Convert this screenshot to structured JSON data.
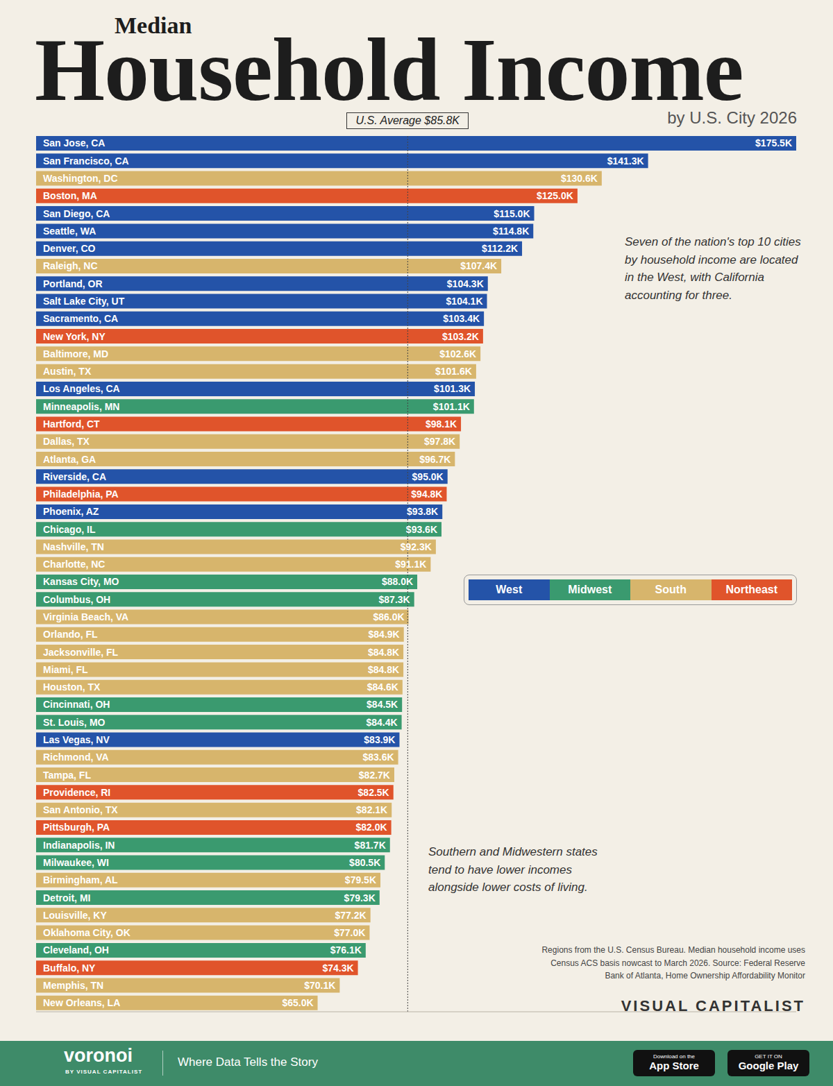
{
  "chart_data": {
    "type": "bar",
    "orientation": "horizontal",
    "supertitle": "Median",
    "title": "Household Income",
    "subtitle": "by U.S. City 2026",
    "categories": [
      "San Jose, CA",
      "San Francisco, CA",
      "Washington, DC",
      "Boston, MA",
      "San Diego, CA",
      "Seattle, WA",
      "Denver, CO",
      "Raleigh, NC",
      "Portland, OR",
      "Salt Lake City, UT",
      "Sacramento, CA",
      "New York, NY",
      "Baltimore, MD",
      "Austin, TX",
      "Los Angeles, CA",
      "Minneapolis, MN",
      "Hartford, CT",
      "Dallas, TX",
      "Atlanta, GA",
      "Riverside, CA",
      "Philadelphia, PA",
      "Phoenix, AZ",
      "Chicago, IL",
      "Nashville, TN",
      "Charlotte, NC",
      "Kansas City, MO",
      "Columbus, OH",
      "Virginia Beach, VA",
      "Orlando, FL",
      "Jacksonville, FL",
      "Miami, FL",
      "Houston, TX",
      "Cincinnati, OH",
      "St. Louis, MO",
      "Las Vegas, NV",
      "Richmond, VA",
      "Tampa, FL",
      "Providence, RI",
      "San Antonio, TX",
      "Pittsburgh, PA",
      "Indianapolis, IN",
      "Milwaukee, WI",
      "Birmingham, AL",
      "Detroit, MI",
      "Louisville, KY",
      "Oklahoma City, OK",
      "Cleveland, OH",
      "Buffalo, NY",
      "Memphis, TN",
      "New Orleans, LA"
    ],
    "values": [
      175.5,
      141.3,
      130.6,
      125.0,
      115.0,
      114.8,
      112.2,
      107.4,
      104.3,
      104.1,
      103.4,
      103.2,
      102.6,
      101.6,
      101.3,
      101.1,
      98.1,
      97.8,
      96.7,
      95.0,
      94.8,
      93.8,
      93.6,
      92.3,
      91.1,
      88.0,
      87.3,
      86.0,
      84.9,
      84.8,
      84.8,
      84.6,
      84.5,
      84.4,
      83.9,
      83.6,
      82.7,
      82.5,
      82.1,
      82.0,
      81.7,
      80.5,
      79.5,
      79.3,
      77.2,
      77.0,
      76.1,
      74.3,
      70.1,
      65.0
    ],
    "value_labels": [
      "$175.5K",
      "$141.3K",
      "$130.6K",
      "$125.0K",
      "$115.0K",
      "$114.8K",
      "$112.2K",
      "$107.4K",
      "$104.3K",
      "$104.1K",
      "$103.4K",
      "$103.2K",
      "$102.6K",
      "$101.6K",
      "$101.3K",
      "$101.1K",
      "$98.1K",
      "$97.8K",
      "$96.7K",
      "$95.0K",
      "$94.8K",
      "$93.8K",
      "$93.6K",
      "$92.3K",
      "$91.1K",
      "$88.0K",
      "$87.3K",
      "$86.0K",
      "$84.9K",
      "$84.8K",
      "$84.8K",
      "$84.6K",
      "$84.5K",
      "$84.4K",
      "$83.9K",
      "$83.6K",
      "$82.7K",
      "$82.5K",
      "$82.1K",
      "$82.0K",
      "$81.7K",
      "$80.5K",
      "$79.5K",
      "$79.3K",
      "$77.2K",
      "$77.0K",
      "$76.1K",
      "$74.3K",
      "$70.1K",
      "$65.0K"
    ],
    "colors": [
      "#2453a8",
      "#2453a8",
      "#d7b56c",
      "#e0542b",
      "#2453a8",
      "#2453a8",
      "#2453a8",
      "#d7b56c",
      "#2453a8",
      "#2453a8",
      "#2453a8",
      "#e0542b",
      "#d7b56c",
      "#d7b56c",
      "#2453a8",
      "#3a9a6f",
      "#e0542b",
      "#d7b56c",
      "#d7b56c",
      "#2453a8",
      "#e0542b",
      "#2453a8",
      "#3a9a6f",
      "#d7b56c",
      "#d7b56c",
      "#3a9a6f",
      "#3a9a6f",
      "#d7b56c",
      "#d7b56c",
      "#d7b56c",
      "#d7b56c",
      "#d7b56c",
      "#3a9a6f",
      "#3a9a6f",
      "#2453a8",
      "#d7b56c",
      "#d7b56c",
      "#e0542b",
      "#d7b56c",
      "#e0542b",
      "#3a9a6f",
      "#3a9a6f",
      "#d7b56c",
      "#3a9a6f",
      "#d7b56c",
      "#d7b56c",
      "#3a9a6f",
      "#e0542b",
      "#d7b56c",
      "#d7b56c"
    ],
    "regions": [
      {
        "name": "West",
        "color": "#2453a8"
      },
      {
        "name": "Midwest",
        "color": "#3a9a6f"
      },
      {
        "name": "South",
        "color": "#d7b56c"
      },
      {
        "name": "Northeast",
        "color": "#e0542b"
      }
    ],
    "average": {
      "value": 85.8,
      "label": "U.S. Average $85.8K"
    },
    "xlim": [
      0,
      175.5
    ],
    "tick_labels": false,
    "grid": false,
    "data_labels": true,
    "annotations": [
      "Seven of the nation's top 10 cities by household income are located in the West, with California accounting for three.",
      "Southern and Midwestern states tend to have lower incomes alongside lower costs of living."
    ],
    "source": "Regions from the U.S. Census Bureau. Median household income uses Census ACS basis nowcast to March 2026. Source: Federal Reserve Bank of Atlanta, Home Ownership Affordability Monitor",
    "brand": "VISUAL CAPITALIST",
    "footer": {
      "logo": "voronoi",
      "logo_sub": "BY VISUAL CAPITALIST",
      "tagline": "Where Data Tells the Story",
      "apple_top": "Download on the",
      "apple": "App Store",
      "google_top": "GET IT ON",
      "google": "Google Play"
    }
  }
}
